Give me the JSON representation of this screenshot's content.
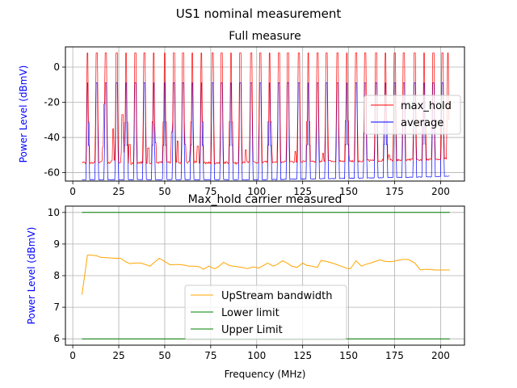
{
  "suptitle": "US1 nominal measurement",
  "chart_data": [
    {
      "type": "line",
      "title": "Full measure",
      "xlabel": "",
      "ylabel": "Power Level (dBmV)",
      "xlim": [
        -4,
        213
      ],
      "ylim": [
        -64.8,
        11.5
      ],
      "xticks": [
        0,
        25,
        50,
        75,
        100,
        125,
        150,
        175,
        200
      ],
      "yticks": [
        -60,
        -40,
        -20,
        0
      ],
      "grid": true,
      "legend": "right",
      "series_colors": {
        "max_hold": "#ff0000",
        "average": "#0000ff"
      },
      "series": [
        {
          "name": "max_hold",
          "x_range": [
            5,
            205
          ],
          "baseline_values": [
            -54.3,
            -54.6,
            -54.1,
            -54.8,
            -54.4,
            -54.9,
            -54.2,
            -54.7,
            -54.0,
            -54.5,
            -54.3,
            -53.9,
            -54.4,
            -54.7,
            -54.2,
            -54.6,
            -54.0,
            -54.3,
            -53.8,
            -54.2,
            -53.7,
            -53.9,
            -53.5,
            -53.8,
            -53.4,
            -53.7,
            -53.2,
            -53.5,
            -53.0,
            -53.3,
            -52.8,
            -53.1,
            -52.6,
            -52.9,
            -52.4,
            -52.2,
            -51.8
          ],
          "peaks": [
            {
              "x": 8,
              "y": 8
            },
            {
              "x": 13,
              "y": 8
            },
            {
              "x": 18,
              "y": 8
            },
            {
              "x": 24,
              "y": 8
            },
            {
              "x": 29,
              "y": 8
            },
            {
              "x": 34,
              "y": 8
            },
            {
              "x": 39,
              "y": 8
            },
            {
              "x": 44,
              "y": 8
            },
            {
              "x": 50,
              "y": 8
            },
            {
              "x": 55,
              "y": 8
            },
            {
              "x": 60,
              "y": 8
            },
            {
              "x": 65,
              "y": 8
            },
            {
              "x": 70,
              "y": 8
            },
            {
              "x": 76,
              "y": 8
            },
            {
              "x": 81,
              "y": 8
            },
            {
              "x": 86,
              "y": 8
            },
            {
              "x": 91,
              "y": 8
            },
            {
              "x": 97,
              "y": 8
            },
            {
              "x": 102,
              "y": 8
            },
            {
              "x": 107,
              "y": 8
            },
            {
              "x": 112,
              "y": 8
            },
            {
              "x": 117,
              "y": 8
            },
            {
              "x": 123,
              "y": 8
            },
            {
              "x": 128,
              "y": 8
            },
            {
              "x": 133,
              "y": 8
            },
            {
              "x": 138,
              "y": 8
            },
            {
              "x": 144,
              "y": 8
            },
            {
              "x": 149,
              "y": 8
            },
            {
              "x": 154,
              "y": 8
            },
            {
              "x": 159,
              "y": 8
            },
            {
              "x": 165,
              "y": 8
            },
            {
              "x": 170,
              "y": 8
            },
            {
              "x": 175,
              "y": 8
            },
            {
              "x": 180,
              "y": 8
            },
            {
              "x": 186,
              "y": 8
            },
            {
              "x": 191,
              "y": 8
            },
            {
              "x": 196,
              "y": 8
            },
            {
              "x": 201,
              "y": 8
            },
            {
              "x": 204,
              "y": 8
            },
            {
              "x": 17,
              "y": -21
            },
            {
              "x": 22,
              "y": -35
            },
            {
              "x": 27,
              "y": -27
            },
            {
              "x": 29,
              "y": -31
            },
            {
              "x": 31,
              "y": -44
            },
            {
              "x": 41,
              "y": -46
            },
            {
              "x": 45,
              "y": -43
            },
            {
              "x": 54,
              "y": -37
            },
            {
              "x": 57,
              "y": -42
            },
            {
              "x": 61,
              "y": -44
            },
            {
              "x": 64,
              "y": -47
            },
            {
              "x": 68,
              "y": -45
            },
            {
              "x": 94,
              "y": -47
            },
            {
              "x": 108,
              "y": -46
            },
            {
              "x": 121,
              "y": -48
            },
            {
              "x": 136,
              "y": -49
            },
            {
              "x": 150,
              "y": -50
            },
            {
              "x": 172,
              "y": -50
            }
          ]
        },
        {
          "name": "average",
          "x_range": [
            5,
            205
          ],
          "baseline_values": [
            -64,
            -64,
            -64,
            -64,
            -64,
            -64,
            -64,
            -64,
            -64,
            -64,
            -64,
            -64,
            -64,
            -64,
            -64,
            -64,
            -64,
            -64,
            -64,
            -63.9,
            -63.8,
            -63.7,
            -63.6,
            -63.5,
            -63.4,
            -63.3,
            -63.2,
            -63.1,
            -63.0,
            -62.9,
            -62.8,
            -62.7,
            -62.6,
            -62.5,
            -62.4,
            -62.2,
            -62.0
          ],
          "peaks": [
            {
              "x": 8,
              "y": -9
            },
            {
              "x": 13,
              "y": -9
            },
            {
              "x": 18,
              "y": -9
            },
            {
              "x": 24,
              "y": -9
            },
            {
              "x": 29,
              "y": -9
            },
            {
              "x": 34,
              "y": -9
            },
            {
              "x": 39,
              "y": -9
            },
            {
              "x": 44,
              "y": -9
            },
            {
              "x": 50,
              "y": -9
            },
            {
              "x": 55,
              "y": -9
            },
            {
              "x": 60,
              "y": -9
            },
            {
              "x": 65,
              "y": -9
            },
            {
              "x": 70,
              "y": -9
            },
            {
              "x": 76,
              "y": -9
            },
            {
              "x": 81,
              "y": -9
            },
            {
              "x": 86,
              "y": -9
            },
            {
              "x": 91,
              "y": -9
            },
            {
              "x": 97,
              "y": -9
            },
            {
              "x": 102,
              "y": -9
            },
            {
              "x": 107,
              "y": -9
            },
            {
              "x": 112,
              "y": -9
            },
            {
              "x": 117,
              "y": -9
            },
            {
              "x": 123,
              "y": -9
            },
            {
              "x": 128,
              "y": -9
            },
            {
              "x": 133,
              "y": -9
            },
            {
              "x": 138,
              "y": -9
            },
            {
              "x": 144,
              "y": -9
            },
            {
              "x": 149,
              "y": -9
            },
            {
              "x": 154,
              "y": -9
            },
            {
              "x": 159,
              "y": -9
            },
            {
              "x": 165,
              "y": -9
            },
            {
              "x": 170,
              "y": -9
            },
            {
              "x": 175,
              "y": -9
            },
            {
              "x": 180,
              "y": -9
            },
            {
              "x": 186,
              "y": -9
            },
            {
              "x": 191,
              "y": -9
            },
            {
              "x": 196,
              "y": -9
            },
            {
              "x": 201,
              "y": -9
            }
          ]
        }
      ]
    },
    {
      "type": "line",
      "title": "Max_hold carrier measured",
      "xlabel": "Frequency (MHz)",
      "ylabel": "Power Level (dBmV)",
      "xlim": [
        -4,
        213
      ],
      "ylim": [
        5.8,
        10.2
      ],
      "xticks": [
        0,
        25,
        50,
        75,
        100,
        125,
        150,
        175,
        200
      ],
      "yticks": [
        6,
        7,
        8,
        9,
        10
      ],
      "grid": true,
      "legend": "lower-center",
      "series_colors": {
        "UpStream bandwidth": "#ffa500",
        "Lower limit": "#008000",
        "Upper Limit": "#008000"
      },
      "x": [
        5,
        8,
        10,
        13,
        15,
        18,
        21,
        23,
        26,
        29,
        31,
        34,
        37,
        39,
        42,
        45,
        47,
        50,
        53,
        55,
        58,
        61,
        63,
        66,
        69,
        71,
        74,
        77,
        79,
        82,
        85,
        87,
        90,
        93,
        95,
        98,
        101,
        103,
        106,
        109,
        111,
        114,
        117,
        119,
        122,
        125,
        127,
        130,
        133,
        135,
        138,
        141,
        143,
        146,
        149,
        151,
        154,
        157,
        159,
        162,
        165,
        167,
        170,
        173,
        175,
        178,
        181,
        183,
        186,
        189,
        191,
        194,
        197,
        199,
        202,
        205
      ],
      "series": [
        {
          "name": "UpStream bandwidth",
          "values": [
            7.4,
            8.65,
            8.65,
            8.63,
            8.58,
            8.57,
            8.56,
            8.55,
            8.55,
            8.43,
            8.38,
            8.4,
            8.4,
            8.36,
            8.3,
            8.45,
            8.55,
            8.45,
            8.34,
            8.35,
            8.35,
            8.33,
            8.3,
            8.3,
            8.28,
            8.2,
            8.3,
            8.22,
            8.27,
            8.42,
            8.33,
            8.3,
            8.28,
            8.25,
            8.22,
            8.28,
            8.24,
            8.3,
            8.4,
            8.3,
            8.35,
            8.47,
            8.38,
            8.3,
            8.26,
            8.4,
            8.33,
            8.3,
            8.26,
            8.48,
            8.45,
            8.4,
            8.36,
            8.3,
            8.23,
            8.22,
            8.47,
            8.3,
            8.35,
            8.4,
            8.46,
            8.5,
            8.45,
            8.44,
            8.46,
            8.5,
            8.52,
            8.5,
            8.4,
            8.18,
            8.2,
            8.2,
            8.18,
            8.18,
            8.18,
            8.18
          ]
        },
        {
          "name": "Lower limit",
          "x": [
            5,
            205
          ],
          "values": [
            10,
            10
          ]
        },
        {
          "name": "Upper Limit",
          "x": [
            5,
            205
          ],
          "values": [
            6,
            6
          ]
        }
      ]
    }
  ]
}
